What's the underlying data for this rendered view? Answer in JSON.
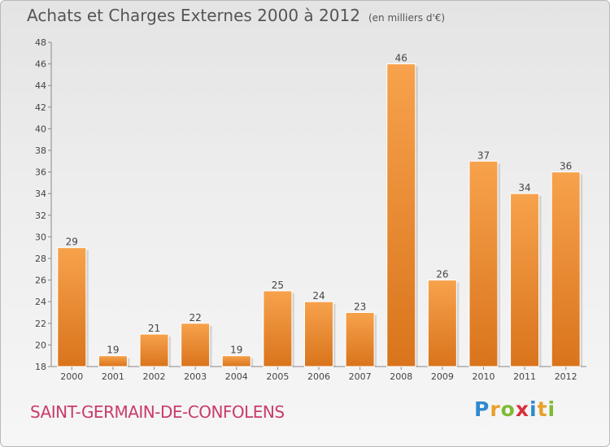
{
  "title": "Achats et Charges Externes 2000 à 2012",
  "subtitle": "(en milliers d'€)",
  "commune": "SAINT-GERMAIN-DE-CONFOLENS",
  "logo": [
    "P",
    "r",
    "o",
    "x",
    "i",
    "t",
    "i"
  ],
  "colors": {
    "bar_light": "#f7a24c",
    "bar_dark": "#d9741c",
    "title": "#555555",
    "commune": "#c93b6a"
  },
  "chart_data": {
    "type": "bar",
    "categories": [
      "2000",
      "2001",
      "2002",
      "2003",
      "2004",
      "2005",
      "2006",
      "2007",
      "2008",
      "2009",
      "2010",
      "2011",
      "2012"
    ],
    "values": [
      29,
      19,
      21,
      22,
      19,
      25,
      24,
      23,
      46,
      26,
      37,
      34,
      36
    ],
    "title": "Achats et Charges Externes 2000 à 2012",
    "subtitle": "(en milliers d'€)",
    "xlabel": "",
    "ylabel": "",
    "ylim": [
      18,
      48
    ],
    "yticks": [
      18,
      20,
      22,
      24,
      26,
      28,
      30,
      32,
      34,
      36,
      38,
      40,
      42,
      44,
      46,
      48
    ],
    "grid": false,
    "data_labels": true
  }
}
